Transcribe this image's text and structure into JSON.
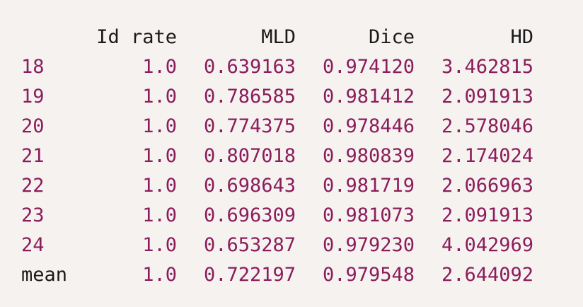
{
  "table": {
    "headers": {
      "index": "",
      "rate": "Id rate",
      "mld": "MLD",
      "dice": "Dice",
      "hd": "HD"
    },
    "rows": [
      {
        "index": "18",
        "rate": "1.0",
        "mld": "0.639163",
        "dice": "0.974120",
        "hd": "3.462815"
      },
      {
        "index": "19",
        "rate": "1.0",
        "mld": "0.786585",
        "dice": "0.981412",
        "hd": "2.091913"
      },
      {
        "index": "20",
        "rate": "1.0",
        "mld": "0.774375",
        "dice": "0.978446",
        "hd": "2.578046"
      },
      {
        "index": "21",
        "rate": "1.0",
        "mld": "0.807018",
        "dice": "0.980839",
        "hd": "2.174024"
      },
      {
        "index": "22",
        "rate": "1.0",
        "mld": "0.698643",
        "dice": "0.981719",
        "hd": "2.066963"
      },
      {
        "index": "23",
        "rate": "1.0",
        "mld": "0.696309",
        "dice": "0.981073",
        "hd": "2.091913"
      },
      {
        "index": "24",
        "rate": "1.0",
        "mld": "0.653287",
        "dice": "0.979230",
        "hd": "4.042969"
      },
      {
        "index": "mean",
        "rate": "1.0",
        "mld": "0.722197",
        "dice": "0.979548",
        "hd": "2.644092"
      }
    ]
  },
  "colors": {
    "background": "#f5f2f0",
    "value_text": "#8b1d5a",
    "header_text": "#1a1a1a"
  }
}
